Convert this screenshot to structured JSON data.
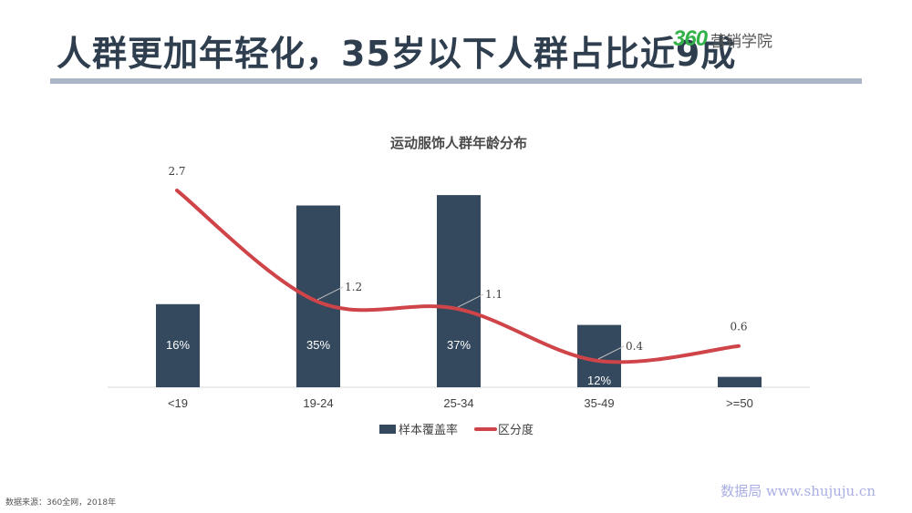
{
  "page": {
    "title": "人群更加年轻化，35岁以下人群占比近9成",
    "logo_text": "营销学院",
    "logo_mark": "360",
    "source": "数据来源：360全网，2018年",
    "watermark": "数据局  www.shujuju.cn"
  },
  "colors": {
    "bar": "#34495e",
    "line": "#cf4448",
    "title": "#2e3e4f",
    "rule": "#aab5c8",
    "logo_green": "#33b34a"
  },
  "chart_data": {
    "type": "bar",
    "title": "运动服饰人群年龄分布",
    "categories": [
      "<19",
      "19-24",
      "25-34",
      "35-49",
      ">=50"
    ],
    "series": [
      {
        "name": "样本覆盖率",
        "type": "bar",
        "values": [
          16,
          35,
          37,
          12,
          2
        ],
        "labels": [
          "16%",
          "35%",
          "37%",
          "12%",
          ""
        ]
      },
      {
        "name": "区分度",
        "type": "line",
        "values": [
          2.7,
          1.2,
          1.1,
          0.4,
          0.6
        ],
        "labels": [
          "2.7",
          "1.2",
          "1.1",
          "0.4",
          "0.6"
        ]
      }
    ],
    "legend": "bottom",
    "grid": false
  }
}
